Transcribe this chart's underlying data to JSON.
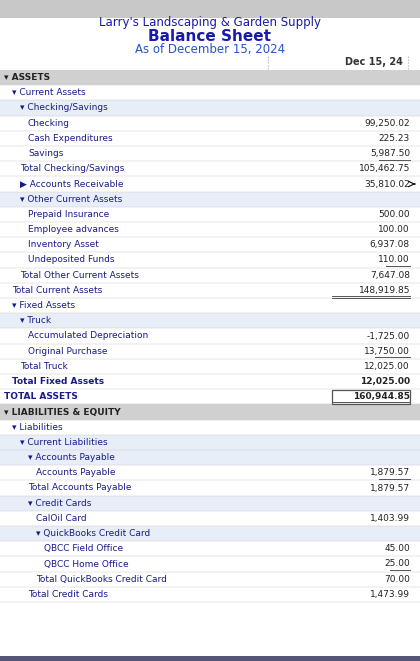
{
  "title1": "Larry's Landscaping & Garden Supply",
  "title2": "Balance Sheet",
  "title3": "As of December 15, 2024",
  "col_header": "Dec 15, 24",
  "title1_color": "#1a1aaa",
  "title2_color": "#1a1aaa",
  "title3_color": "#2255cc",
  "text_color": "#1a1a8a",
  "section_header_bg": "#d0d0d0",
  "subsection_bg": "#e8eef8",
  "rows": [
    {
      "label": "▾ ASSETS",
      "value": null,
      "indent": 0,
      "bold": true,
      "section_header": true
    },
    {
      "label": "▾ Current Assets",
      "value": null,
      "indent": 1,
      "bold": false,
      "section_header": false
    },
    {
      "label": "▾ Checking/Savings",
      "value": null,
      "indent": 2,
      "bold": false,
      "section_header": false,
      "sub_bg": true
    },
    {
      "label": "Checking",
      "value": "99,250.02",
      "indent": 3,
      "bold": false,
      "section_header": false
    },
    {
      "label": "Cash Expenditures",
      "value": "225.23",
      "indent": 3,
      "bold": false,
      "section_header": false
    },
    {
      "label": "Savings",
      "value": "5,987.50",
      "indent": 3,
      "bold": false,
      "underline_value": true,
      "section_header": false
    },
    {
      "label": "Total Checking/Savings",
      "value": "105,462.75",
      "indent": 2,
      "bold": false,
      "section_header": false
    },
    {
      "label": "▶ Accounts Receivable",
      "value": "35,810.02",
      "indent": 2,
      "bold": false,
      "section_header": false,
      "arrow": true
    },
    {
      "label": "▾ Other Current Assets",
      "value": null,
      "indent": 2,
      "bold": false,
      "section_header": false,
      "sub_bg": true
    },
    {
      "label": "Prepaid Insurance",
      "value": "500.00",
      "indent": 3,
      "bold": false,
      "section_header": false
    },
    {
      "label": "Employee advances",
      "value": "100.00",
      "indent": 3,
      "bold": false,
      "section_header": false
    },
    {
      "label": "Inventory Asset",
      "value": "6,937.08",
      "indent": 3,
      "bold": false,
      "section_header": false
    },
    {
      "label": "Undeposited Funds",
      "value": "110.00",
      "indent": 3,
      "bold": false,
      "underline_value": true,
      "section_header": false
    },
    {
      "label": "Total Other Current Assets",
      "value": "7,647.08",
      "indent": 2,
      "bold": false,
      "section_header": false
    },
    {
      "label": "Total Current Assets",
      "value": "148,919.85",
      "indent": 1,
      "bold": false,
      "section_header": false,
      "double_underline": true
    },
    {
      "label": "▾ Fixed Assets",
      "value": null,
      "indent": 1,
      "bold": false,
      "section_header": false
    },
    {
      "label": "▾ Truck",
      "value": null,
      "indent": 2,
      "bold": false,
      "section_header": false,
      "sub_bg": true
    },
    {
      "label": "Accumulated Depreciation",
      "value": "-1,725.00",
      "indent": 3,
      "bold": false,
      "section_header": false
    },
    {
      "label": "Original Purchase",
      "value": "13,750.00",
      "indent": 3,
      "bold": false,
      "underline_value": true,
      "section_header": false
    },
    {
      "label": "Total Truck",
      "value": "12,025.00",
      "indent": 2,
      "bold": false,
      "section_header": false
    },
    {
      "label": "Total Fixed Assets",
      "value": "12,025.00",
      "indent": 1,
      "bold": true,
      "section_header": false
    },
    {
      "label": "TOTAL ASSETS",
      "value": "160,944.85",
      "indent": 0,
      "bold": true,
      "section_header": false,
      "double_underline": true,
      "box_value": true
    },
    {
      "label": "▾ LIABILITIES & EQUITY",
      "value": null,
      "indent": 0,
      "bold": true,
      "section_header": true
    },
    {
      "label": "▾ Liabilities",
      "value": null,
      "indent": 1,
      "bold": false,
      "section_header": false
    },
    {
      "label": "▾ Current Liabilities",
      "value": null,
      "indent": 2,
      "bold": false,
      "section_header": false,
      "sub_bg": true
    },
    {
      "label": "▾ Accounts Payable",
      "value": null,
      "indent": 3,
      "bold": false,
      "section_header": false,
      "sub_bg": true
    },
    {
      "label": "Accounts Payable",
      "value": "1,879.57",
      "indent": 4,
      "bold": false,
      "underline_value": true,
      "section_header": false
    },
    {
      "label": "Total Accounts Payable",
      "value": "1,879.57",
      "indent": 3,
      "bold": false,
      "section_header": false
    },
    {
      "label": "▾ Credit Cards",
      "value": null,
      "indent": 3,
      "bold": false,
      "section_header": false,
      "sub_bg": true
    },
    {
      "label": "CalOil Card",
      "value": "1,403.99",
      "indent": 4,
      "bold": false,
      "section_header": false
    },
    {
      "label": "▾ QuickBooks Credit Card",
      "value": null,
      "indent": 4,
      "bold": false,
      "section_header": false,
      "sub_bg": true
    },
    {
      "label": "QBCC Field Office",
      "value": "45.00",
      "indent": 5,
      "bold": false,
      "section_header": false
    },
    {
      "label": "QBCC Home Office",
      "value": "25.00",
      "indent": 5,
      "bold": false,
      "underline_value": true,
      "section_header": false
    },
    {
      "label": "Total QuickBooks Credit Card",
      "value": "70.00",
      "indent": 4,
      "bold": false,
      "section_header": false
    },
    {
      "label": "Total Credit Cards",
      "value": "1,473.99",
      "indent": 3,
      "bold": false,
      "section_header": false
    }
  ]
}
